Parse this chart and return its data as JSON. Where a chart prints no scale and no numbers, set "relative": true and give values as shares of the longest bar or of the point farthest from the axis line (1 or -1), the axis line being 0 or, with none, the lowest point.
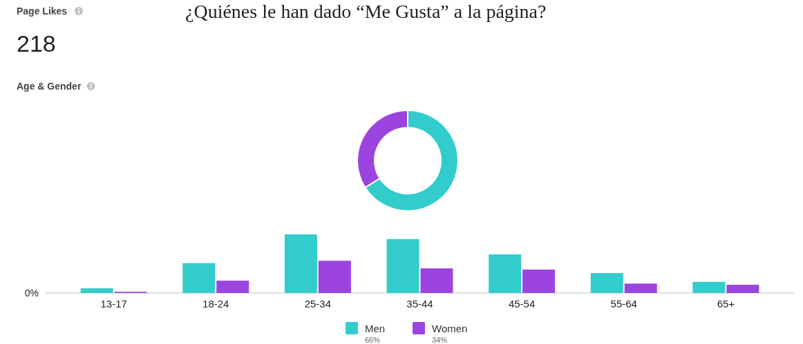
{
  "chart_data": [
    {
      "type": "other",
      "title": "¿Quiénes le han dado “Me Gusta” a la página?",
      "subtitle": "Page Likes",
      "annotations": [
        "218",
        "Age & Gender"
      ]
    },
    {
      "type": "donut",
      "categories": [
        "Men",
        "Women"
      ],
      "values": [
        66,
        34
      ],
      "colors": [
        "#33cccc",
        "#9b44e0"
      ],
      "value_labels": [
        "66%",
        "34%"
      ],
      "legend": "bottom"
    },
    {
      "type": "bar",
      "relative": true,
      "categories": [
        "13-17",
        "18-24",
        "25-34",
        "35-44",
        "45-54",
        "55-64",
        "65+"
      ],
      "annotations": [
        "0%"
      ],
      "series": [
        {
          "color": "#33cccc",
          "values": [
            0.08,
            0.51,
            1,
            0.92,
            0.66,
            0.34,
            0.19
          ]
        },
        {
          "color": "#9b44e0",
          "values": [
            0.02,
            0.21,
            0.55,
            0.42,
            0.4,
            0.16,
            0.14
          ]
        }
      ]
    }
  ]
}
